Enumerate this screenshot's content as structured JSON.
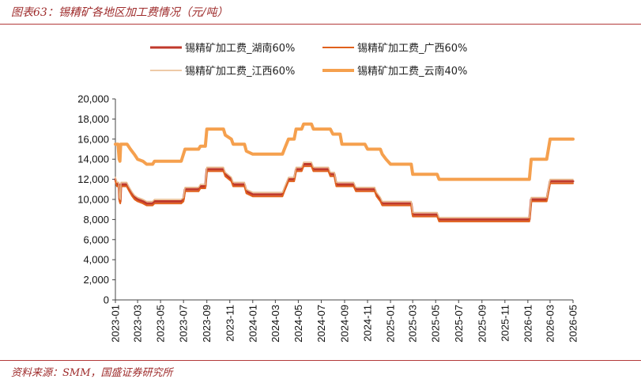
{
  "header": {
    "title": "图表63：锡精矿各地区加工费情况（元/吨）"
  },
  "footer": {
    "source": "资料来源：SMM，国盛证券研究所"
  },
  "colors": {
    "accent": "#9e2b2b"
  },
  "chart_data": {
    "type": "line",
    "title": "",
    "xlabel": "",
    "ylabel": "",
    "ylim": [
      0,
      20000
    ],
    "yticks": [
      "0",
      "2,000",
      "4,000",
      "6,000",
      "8,000",
      "10,000",
      "12,000",
      "14,000",
      "16,000",
      "18,000",
      "20,000"
    ],
    "xticks": [
      "2023-01",
      "2023-03",
      "2023-05",
      "2023-07",
      "2023-09",
      "2023-11",
      "2024-01",
      "2024-03",
      "2024-05",
      "2024-07",
      "2024-09",
      "2024-11",
      "2025-01",
      "2025-03",
      "2025-05",
      "2025-07",
      "2025-09",
      "2025-11",
      "2026-01",
      "2026-03",
      "2026-05"
    ],
    "xrange": [
      "2023-01-01",
      "2026-05-01"
    ],
    "legend": "top",
    "grid": false,
    "series": [
      {
        "name": "锡精矿加工费_湖南60%",
        "color": "#c0392b",
        "width": 3,
        "points": [
          [
            "2023-01-01",
            12000
          ],
          [
            "2023-01-05",
            11500
          ],
          [
            "2023-01-10",
            11500
          ],
          [
            "2023-01-12",
            10000
          ],
          [
            "2023-01-14",
            9800
          ],
          [
            "2023-01-16",
            11500
          ],
          [
            "2023-01-31",
            11500
          ],
          [
            "2023-02-07",
            11000
          ],
          [
            "2023-02-15",
            10500
          ],
          [
            "2023-02-21",
            10200
          ],
          [
            "2023-03-01",
            10000
          ],
          [
            "2023-03-15",
            9800
          ],
          [
            "2023-03-25",
            9600
          ],
          [
            "2023-04-10",
            9600
          ],
          [
            "2023-04-15",
            9800
          ],
          [
            "2023-06-25",
            9800
          ],
          [
            "2023-07-01",
            10000
          ],
          [
            "2023-07-05",
            11000
          ],
          [
            "2023-08-10",
            11000
          ],
          [
            "2023-08-15",
            11300
          ],
          [
            "2023-08-28",
            11300
          ],
          [
            "2023-09-01",
            13000
          ],
          [
            "2023-10-15",
            13000
          ],
          [
            "2023-10-20",
            12500
          ],
          [
            "2023-11-05",
            12000
          ],
          [
            "2023-11-10",
            11500
          ],
          [
            "2023-12-10",
            11500
          ],
          [
            "2023-12-15",
            10800
          ],
          [
            "2024-01-01",
            10500
          ],
          [
            "2024-03-20",
            10500
          ],
          [
            "2024-03-25",
            11000
          ],
          [
            "2024-04-05",
            12000
          ],
          [
            "2024-04-20",
            12000
          ],
          [
            "2024-04-25",
            13000
          ],
          [
            "2024-05-10",
            13000
          ],
          [
            "2024-05-15",
            13500
          ],
          [
            "2024-06-05",
            13500
          ],
          [
            "2024-06-10",
            13000
          ],
          [
            "2024-07-20",
            13000
          ],
          [
            "2024-07-25",
            12500
          ],
          [
            "2024-08-05",
            12500
          ],
          [
            "2024-08-10",
            11500
          ],
          [
            "2024-09-25",
            11500
          ],
          [
            "2024-10-01",
            11000
          ],
          [
            "2024-11-20",
            11000
          ],
          [
            "2024-11-25",
            10500
          ],
          [
            "2024-12-05",
            10000
          ],
          [
            "2024-12-10",
            9600
          ],
          [
            "2025-02-25",
            9600
          ],
          [
            "2025-03-01",
            8500
          ],
          [
            "2025-05-05",
            8500
          ],
          [
            "2025-05-10",
            8000
          ],
          [
            "2026-01-05",
            8000
          ],
          [
            "2026-01-10",
            10000
          ],
          [
            "2026-02-20",
            10000
          ],
          [
            "2026-03-01",
            11800
          ],
          [
            "2026-05-01",
            11800
          ]
        ]
      },
      {
        "name": "锡精矿加工费_广西60%",
        "color": "#e0601c",
        "width": 2,
        "points": [
          [
            "2023-01-01",
            11800
          ],
          [
            "2023-01-05",
            11300
          ],
          [
            "2023-01-10",
            11300
          ],
          [
            "2023-01-12",
            9800
          ],
          [
            "2023-01-14",
            9600
          ],
          [
            "2023-01-16",
            11300
          ],
          [
            "2023-01-31",
            11300
          ],
          [
            "2023-02-07",
            10800
          ],
          [
            "2023-02-15",
            10300
          ],
          [
            "2023-02-21",
            10000
          ],
          [
            "2023-03-01",
            9800
          ],
          [
            "2023-03-15",
            9600
          ],
          [
            "2023-03-25",
            9400
          ],
          [
            "2023-04-10",
            9400
          ],
          [
            "2023-04-15",
            9600
          ],
          [
            "2023-06-25",
            9600
          ],
          [
            "2023-07-01",
            9800
          ],
          [
            "2023-07-05",
            10800
          ],
          [
            "2023-08-10",
            10800
          ],
          [
            "2023-08-15",
            11100
          ],
          [
            "2023-08-28",
            11100
          ],
          [
            "2023-09-01",
            12800
          ],
          [
            "2023-10-15",
            12800
          ],
          [
            "2023-10-20",
            12300
          ],
          [
            "2023-11-05",
            11800
          ],
          [
            "2023-11-10",
            11300
          ],
          [
            "2023-12-10",
            11300
          ],
          [
            "2023-12-15",
            10600
          ],
          [
            "2024-01-01",
            10300
          ],
          [
            "2024-03-20",
            10300
          ],
          [
            "2024-03-25",
            10800
          ],
          [
            "2024-04-05",
            11800
          ],
          [
            "2024-04-20",
            11800
          ],
          [
            "2024-04-25",
            12800
          ],
          [
            "2024-05-10",
            12800
          ],
          [
            "2024-05-15",
            13300
          ],
          [
            "2024-06-05",
            13300
          ],
          [
            "2024-06-10",
            12800
          ],
          [
            "2024-07-20",
            12800
          ],
          [
            "2024-07-25",
            12300
          ],
          [
            "2024-08-05",
            12300
          ],
          [
            "2024-08-10",
            11300
          ],
          [
            "2024-09-25",
            11300
          ],
          [
            "2024-10-01",
            10800
          ],
          [
            "2024-11-20",
            10800
          ],
          [
            "2024-11-25",
            10300
          ],
          [
            "2024-12-05",
            9800
          ],
          [
            "2024-12-10",
            9400
          ],
          [
            "2025-02-25",
            9400
          ],
          [
            "2025-03-01",
            8300
          ],
          [
            "2025-05-05",
            8300
          ],
          [
            "2025-05-10",
            7800
          ],
          [
            "2026-01-05",
            7800
          ],
          [
            "2026-01-10",
            9800
          ],
          [
            "2026-02-20",
            9800
          ],
          [
            "2026-03-01",
            11600
          ],
          [
            "2026-05-01",
            11600
          ]
        ]
      },
      {
        "name": "锡精矿加工费_江西60%",
        "color": "#e8b88a",
        "width": 1.5,
        "points": [
          [
            "2023-01-01",
            12200
          ],
          [
            "2023-01-05",
            11700
          ],
          [
            "2023-01-10",
            11700
          ],
          [
            "2023-01-12",
            10200
          ],
          [
            "2023-01-14",
            10000
          ],
          [
            "2023-01-16",
            11700
          ],
          [
            "2023-01-31",
            11700
          ],
          [
            "2023-02-07",
            11200
          ],
          [
            "2023-02-15",
            10700
          ],
          [
            "2023-02-21",
            10400
          ],
          [
            "2023-03-01",
            10200
          ],
          [
            "2023-03-15",
            10000
          ],
          [
            "2023-03-25",
            9800
          ],
          [
            "2023-04-10",
            9800
          ],
          [
            "2023-04-15",
            10000
          ],
          [
            "2023-06-25",
            10000
          ],
          [
            "2023-07-01",
            10200
          ],
          [
            "2023-07-05",
            11200
          ],
          [
            "2023-08-10",
            11200
          ],
          [
            "2023-08-15",
            11500
          ],
          [
            "2023-08-28",
            11500
          ],
          [
            "2023-09-01",
            13200
          ],
          [
            "2023-10-15",
            13200
          ],
          [
            "2023-10-20",
            12700
          ],
          [
            "2023-11-05",
            12200
          ],
          [
            "2023-11-10",
            11700
          ],
          [
            "2023-12-10",
            11700
          ],
          [
            "2023-12-15",
            11000
          ],
          [
            "2024-01-01",
            10700
          ],
          [
            "2024-03-20",
            10700
          ],
          [
            "2024-03-25",
            11200
          ],
          [
            "2024-04-05",
            12200
          ],
          [
            "2024-04-20",
            12200
          ],
          [
            "2024-04-25",
            13200
          ],
          [
            "2024-05-10",
            13200
          ],
          [
            "2024-05-15",
            13700
          ],
          [
            "2024-06-05",
            13700
          ],
          [
            "2024-06-10",
            13200
          ],
          [
            "2024-07-20",
            13200
          ],
          [
            "2024-07-25",
            12700
          ],
          [
            "2024-08-05",
            12700
          ],
          [
            "2024-08-10",
            11700
          ],
          [
            "2024-09-25",
            11700
          ],
          [
            "2024-10-01",
            11200
          ],
          [
            "2024-11-20",
            11200
          ],
          [
            "2024-11-25",
            10700
          ],
          [
            "2024-12-05",
            10200
          ],
          [
            "2024-12-10",
            9800
          ],
          [
            "2025-02-25",
            9800
          ],
          [
            "2025-03-01",
            8700
          ],
          [
            "2025-05-05",
            8700
          ],
          [
            "2025-05-10",
            8200
          ],
          [
            "2026-01-05",
            8200
          ],
          [
            "2026-01-10",
            10200
          ],
          [
            "2026-02-20",
            10200
          ],
          [
            "2026-03-01",
            12000
          ],
          [
            "2026-05-01",
            12000
          ]
        ]
      },
      {
        "name": "锡精矿加工费_云南40%",
        "color": "#f5a04e",
        "width": 4,
        "points": [
          [
            "2023-01-01",
            15500
          ],
          [
            "2023-01-08",
            15500
          ],
          [
            "2023-01-11",
            14000
          ],
          [
            "2023-01-13",
            13800
          ],
          [
            "2023-01-15",
            15500
          ],
          [
            "2023-02-01",
            15500
          ],
          [
            "2023-02-10",
            15000
          ],
          [
            "2023-02-20",
            14500
          ],
          [
            "2023-03-01",
            14000
          ],
          [
            "2023-03-15",
            13800
          ],
          [
            "2023-03-25",
            13500
          ],
          [
            "2023-04-10",
            13500
          ],
          [
            "2023-04-15",
            13800
          ],
          [
            "2023-06-25",
            13800
          ],
          [
            "2023-07-05",
            15000
          ],
          [
            "2023-08-10",
            15000
          ],
          [
            "2023-08-15",
            15300
          ],
          [
            "2023-08-28",
            15300
          ],
          [
            "2023-09-01",
            17000
          ],
          [
            "2023-10-15",
            17000
          ],
          [
            "2023-10-20",
            16400
          ],
          [
            "2023-11-05",
            16000
          ],
          [
            "2023-11-10",
            15500
          ],
          [
            "2023-12-10",
            15500
          ],
          [
            "2023-12-15",
            14800
          ],
          [
            "2024-01-01",
            14500
          ],
          [
            "2024-03-20",
            14500
          ],
          [
            "2024-03-25",
            15000
          ],
          [
            "2024-04-05",
            16000
          ],
          [
            "2024-04-20",
            16000
          ],
          [
            "2024-04-25",
            17000
          ],
          [
            "2024-05-10",
            17000
          ],
          [
            "2024-05-15",
            17500
          ],
          [
            "2024-06-05",
            17500
          ],
          [
            "2024-06-10",
            17000
          ],
          [
            "2024-07-25",
            17000
          ],
          [
            "2024-08-01",
            16500
          ],
          [
            "2024-08-20",
            16500
          ],
          [
            "2024-08-25",
            15500
          ],
          [
            "2024-10-25",
            15500
          ],
          [
            "2024-11-01",
            15000
          ],
          [
            "2024-12-05",
            15000
          ],
          [
            "2024-12-10",
            14500
          ],
          [
            "2024-12-20",
            14000
          ],
          [
            "2025-01-01",
            13500
          ],
          [
            "2025-02-25",
            13500
          ],
          [
            "2025-03-01",
            12500
          ],
          [
            "2025-05-05",
            12500
          ],
          [
            "2025-05-10",
            12000
          ],
          [
            "2026-01-05",
            12000
          ],
          [
            "2026-01-10",
            14000
          ],
          [
            "2026-02-20",
            14000
          ],
          [
            "2026-03-01",
            16000
          ],
          [
            "2026-05-01",
            16000
          ]
        ]
      }
    ]
  }
}
